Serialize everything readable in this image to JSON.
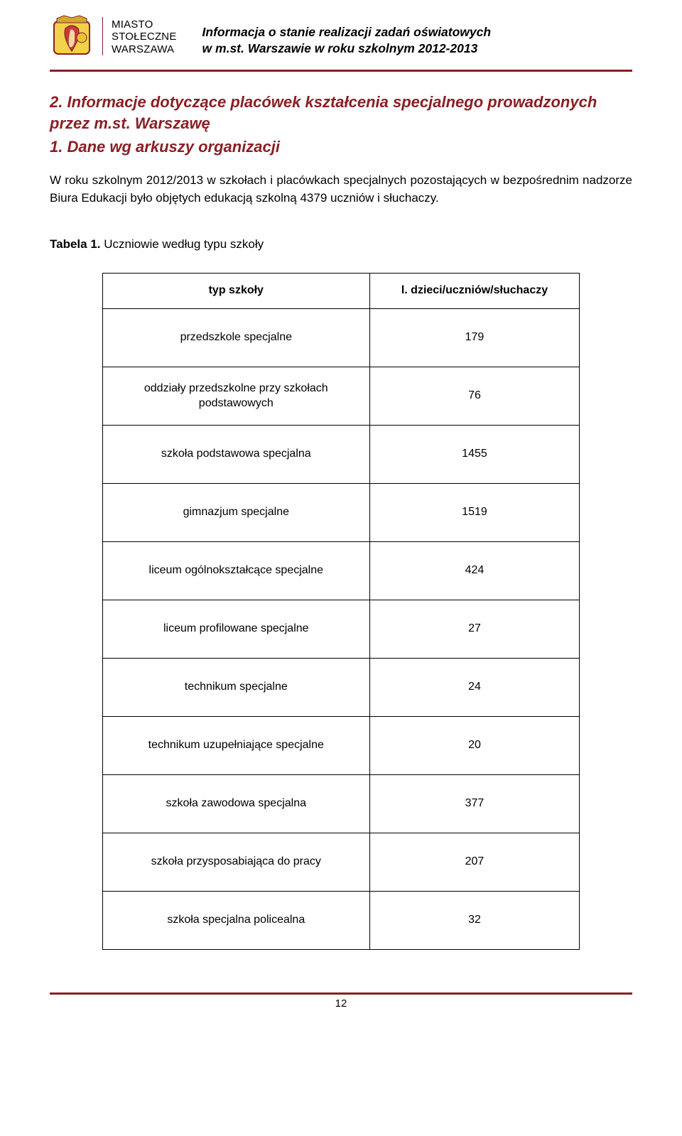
{
  "header": {
    "logo": {
      "line1": "MIASTO",
      "line2": "STOŁECZNE",
      "line3": "WARSZAWA"
    },
    "title_line1": "Informacja o stanie realizacji zadań oświatowych",
    "title_line2": "w m.st. Warszawie w roku szkolnym 2012-2013"
  },
  "section": {
    "title": "2. Informacje dotyczące placówek kształcenia specjalnego prowadzonych przez m.st. Warszawę",
    "subtitle": "1. Dane wg arkuszy organizacji",
    "paragraph": "W roku szkolnym 2012/2013 w szkołach i placówkach specjalnych pozostających w bezpośrednim nadzorze Biura Edukacji było objętych edukacją szkolną 4379 uczniów i słuchaczy."
  },
  "table": {
    "caption_bold": "Tabela 1.",
    "caption_rest": " Uczniowie według typu szkoły",
    "header_left": "typ szkoły",
    "header_right": "l. dzieci/uczniów/słuchaczy",
    "rows": [
      {
        "label": "przedszkole specjalne",
        "value": "179"
      },
      {
        "label": "oddziały przedszkolne przy szkołach podstawowych",
        "value": "76"
      },
      {
        "label": "szkoła podstawowa specjalna",
        "value": "1455"
      },
      {
        "label": "gimnazjum specjalne",
        "value": "1519"
      },
      {
        "label": "liceum ogólnokształcące specjalne",
        "value": "424"
      },
      {
        "label": "liceum profilowane specjalne",
        "value": "27"
      },
      {
        "label": "technikum specjalne",
        "value": "24"
      },
      {
        "label": "technikum uzupełniające specjalne",
        "value": "20"
      },
      {
        "label": "szkoła zawodowa specjalna",
        "value": "377"
      },
      {
        "label": "szkoła przysposabiająca do pracy",
        "value": "207"
      },
      {
        "label": "szkoła specjalna policealna",
        "value": "32"
      }
    ]
  },
  "footer": {
    "page_number": "12"
  },
  "style": {
    "accent_color": "#8a1f24",
    "background": "#ffffff",
    "text_color": "#000000",
    "body_fontsize": 17,
    "title_fontsize": 22,
    "table_fontsize": 16
  }
}
